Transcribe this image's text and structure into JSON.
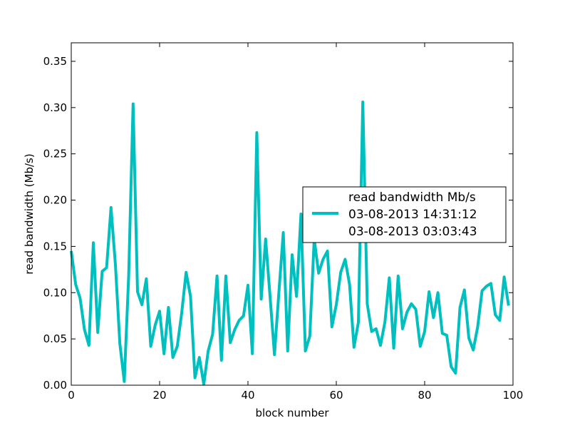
{
  "chart_data": {
    "type": "line",
    "title": "",
    "xlabel": "block number",
    "ylabel": "read bandwidth (Mb/s)",
    "xlim": [
      0,
      100
    ],
    "ylim": [
      0,
      0.37
    ],
    "grid": false,
    "legend_position": "center-right",
    "x_ticks": [
      0,
      20,
      40,
      60,
      80,
      100
    ],
    "y_ticks": [
      0.0,
      0.05,
      0.1,
      0.15,
      0.2,
      0.25,
      0.3,
      0.35
    ],
    "x_tick_labels": [
      "0",
      "20",
      "40",
      "60",
      "80",
      "100"
    ],
    "y_tick_labels": [
      "0.00",
      "0.05",
      "0.10",
      "0.15",
      "0.20",
      "0.25",
      "0.30",
      "0.35"
    ],
    "legend_lines": [
      "read bandwidth Mb/s",
      "03-08-2013 14:31:12",
      "03-08-2013 03:03:43"
    ],
    "series": [
      {
        "color": "#00bfbf",
        "x": [
          0,
          1,
          2,
          3,
          4,
          5,
          6,
          7,
          8,
          9,
          10,
          11,
          12,
          13,
          14,
          15,
          16,
          17,
          18,
          19,
          20,
          21,
          22,
          23,
          24,
          25,
          26,
          27,
          28,
          29,
          30,
          31,
          32,
          33,
          34,
          35,
          36,
          37,
          38,
          39,
          40,
          41,
          42,
          43,
          44,
          45,
          46,
          47,
          48,
          49,
          50,
          51,
          52,
          53,
          54,
          55,
          56,
          57,
          58,
          59,
          60,
          61,
          62,
          63,
          64,
          65,
          66,
          67,
          68,
          69,
          70,
          71,
          72,
          73,
          74,
          75,
          76,
          77,
          78,
          79,
          80,
          81,
          82,
          83,
          84,
          85,
          86,
          87,
          88,
          89,
          90,
          91,
          92,
          93,
          94,
          95,
          96,
          97,
          98,
          99
        ],
        "values": [
          0.145,
          0.109,
          0.094,
          0.06,
          0.043,
          0.154,
          0.057,
          0.123,
          0.127,
          0.192,
          0.13,
          0.045,
          0.004,
          0.118,
          0.304,
          0.101,
          0.087,
          0.115,
          0.042,
          0.065,
          0.08,
          0.034,
          0.084,
          0.03,
          0.042,
          0.078,
          0.122,
          0.096,
          0.008,
          0.03,
          0.001,
          0.037,
          0.055,
          0.118,
          0.027,
          0.118,
          0.046,
          0.06,
          0.07,
          0.075,
          0.108,
          0.034,
          0.273,
          0.093,
          0.158,
          0.096,
          0.033,
          0.1,
          0.165,
          0.037,
          0.141,
          0.096,
          0.185,
          0.037,
          0.053,
          0.158,
          0.121,
          0.136,
          0.145,
          0.063,
          0.087,
          0.122,
          0.136,
          0.109,
          0.041,
          0.068,
          0.306,
          0.088,
          0.058,
          0.061,
          0.043,
          0.068,
          0.116,
          0.04,
          0.118,
          0.061,
          0.079,
          0.088,
          0.082,
          0.042,
          0.058,
          0.101,
          0.073,
          0.1,
          0.056,
          0.054,
          0.02,
          0.013,
          0.084,
          0.103,
          0.051,
          0.038,
          0.063,
          0.102,
          0.107,
          0.11,
          0.076,
          0.07,
          0.117,
          0.086
        ]
      }
    ]
  }
}
